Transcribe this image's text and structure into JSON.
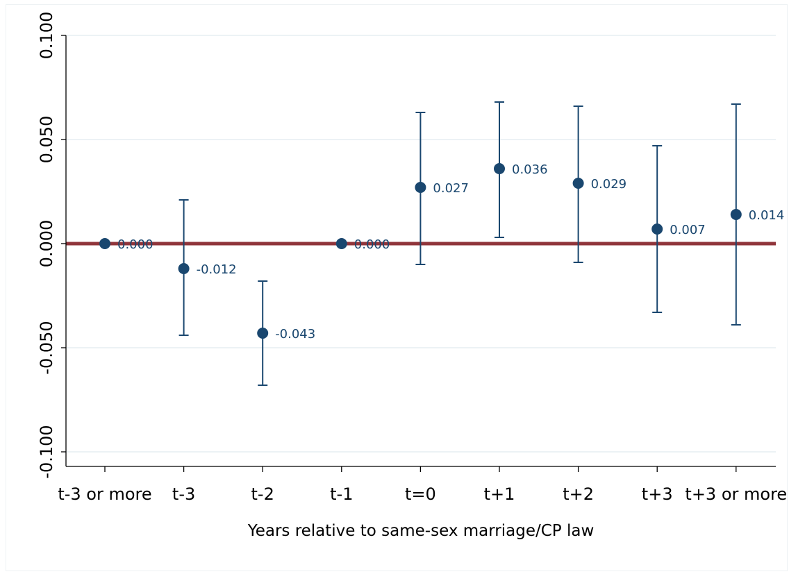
{
  "chart_data": {
    "type": "scatter",
    "title": "",
    "xlabel": "Years relative to same-sex marriage/CP law",
    "ylabel": "",
    "categories": [
      "t-3 or more",
      "t-3",
      "t-2",
      "t-1",
      "t=0",
      "t+1",
      "t+2",
      "t+3",
      "t+3 or more"
    ],
    "ylim": [
      -0.1,
      0.1
    ],
    "yticks": [
      -0.1,
      -0.05,
      0.0,
      0.05,
      0.1
    ],
    "ytick_labels": [
      "-0.100",
      "-0.050",
      "0.000",
      "0.050",
      "0.100"
    ],
    "grid": true,
    "reference_line": 0.0,
    "series": [
      {
        "values": [
          0.0,
          -0.012,
          -0.043,
          0.0,
          0.027,
          0.036,
          0.029,
          0.007,
          0.014
        ],
        "value_labels": [
          "0.000",
          "-0.012",
          "-0.043",
          "0.000",
          "0.027",
          "0.036",
          "0.029",
          "0.007",
          "0.014"
        ],
        "ci_low": [
          null,
          -0.044,
          -0.068,
          null,
          -0.01,
          0.003,
          -0.009,
          -0.033,
          -0.039
        ],
        "ci_high": [
          null,
          0.021,
          -0.018,
          null,
          0.063,
          0.068,
          0.066,
          0.047,
          0.067
        ]
      }
    ],
    "colors": {
      "marker": "#1a476f",
      "errorbar": "#1a476f",
      "reference_line": "#90353b",
      "grid": "#e6eef2",
      "value_label": "#1a476f"
    }
  }
}
